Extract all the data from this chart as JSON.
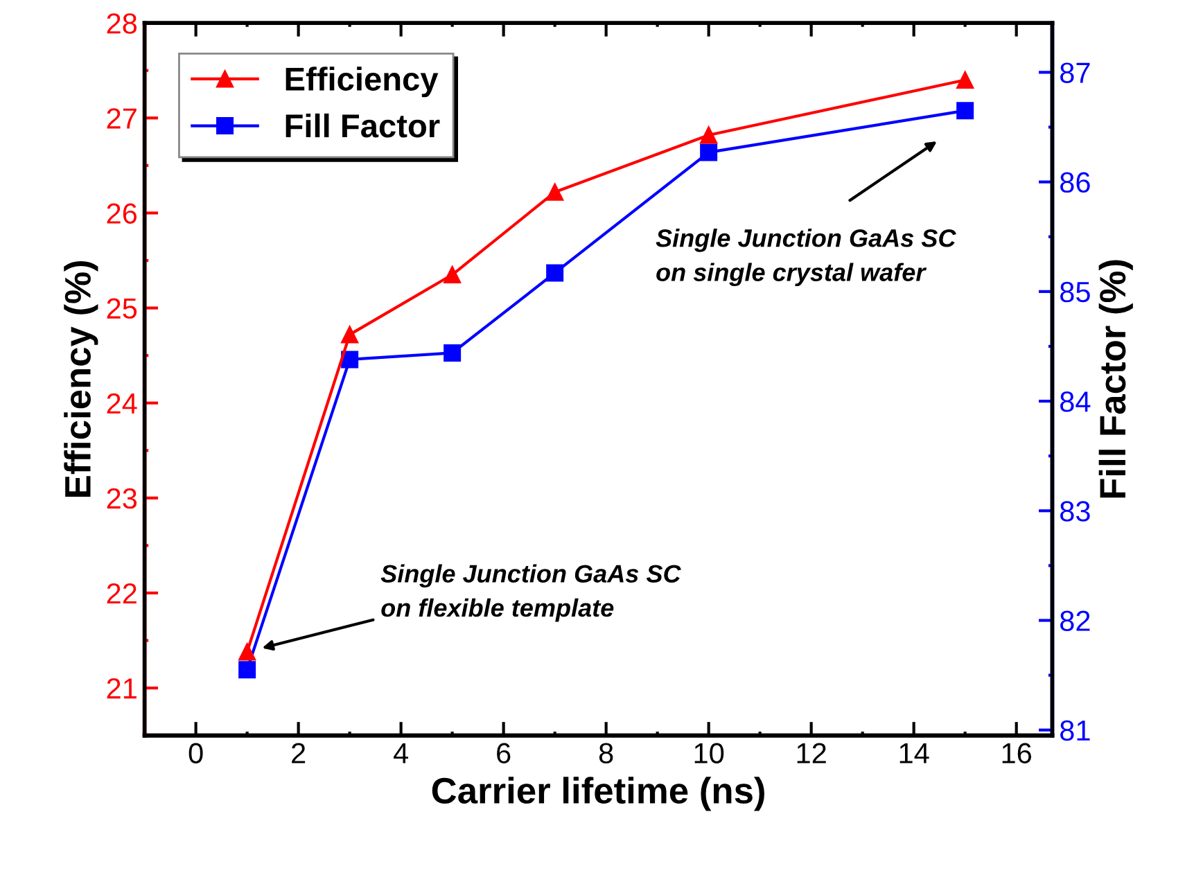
{
  "chart_data": {
    "type": "line",
    "xlabel": "Carrier lifetime (ns)",
    "ylabel": "Efficiency (%)",
    "y2label": "Fill Factor (%)",
    "x": [
      1,
      3,
      5,
      7,
      10,
      15
    ],
    "series": [
      {
        "name": "Efficiency",
        "color": "#ff0000",
        "marker": "triangle",
        "values": [
          21.38,
          24.72,
          25.35,
          26.22,
          26.82,
          27.4
        ]
      },
      {
        "name": "Fill Factor",
        "color": "#0000ff",
        "marker": "square",
        "axis": "y2",
        "values": [
          81.55,
          84.38,
          84.44,
          85.17,
          86.27,
          86.65
        ]
      }
    ],
    "xlim": [
      -1,
      16.7
    ],
    "xticks": [
      0,
      2,
      4,
      6,
      8,
      10,
      12,
      14,
      16
    ],
    "ylim": [
      20.5,
      28
    ],
    "yticks": [
      21,
      22,
      23,
      24,
      25,
      26,
      27,
      28
    ],
    "y2lim": [
      80.95,
      87.45
    ],
    "y2ticks": [
      81,
      82,
      83,
      84,
      85,
      86,
      87
    ],
    "annotations": [
      "Single Junction GaAs SC\non flexible template",
      "Single Junction GaAs SC\non single crystal wafer"
    ],
    "legend": "top left",
    "grid": false,
    "line_style": "solid"
  }
}
